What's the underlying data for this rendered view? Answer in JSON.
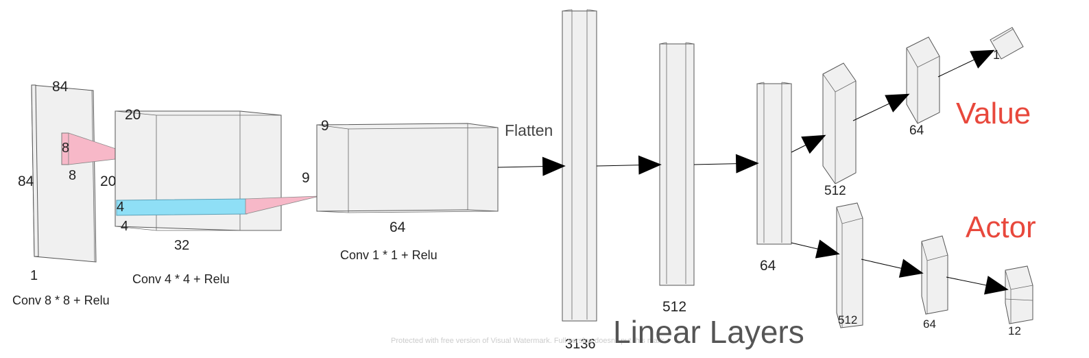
{
  "colors": {
    "accent_red": "#e8483c",
    "kernel_pink": "#f7b8c8",
    "slice_blue": "#8fdff6",
    "box_fill": "#f0f0f0",
    "box_stroke": "#555555"
  },
  "conv1": {
    "height": "84",
    "width": "84",
    "depth": "1",
    "kernel_h": "8",
    "kernel_w": "8",
    "caption": "Conv 8 * 8 + Relu"
  },
  "conv2": {
    "height": "20",
    "width": "20",
    "depth": "32",
    "kernel_h": "4",
    "kernel_w": "4",
    "caption": "Conv 4 * 4 + Relu"
  },
  "conv3": {
    "height": "9",
    "width": "9",
    "depth": "64",
    "caption": "Conv 1 * 1 + Relu"
  },
  "flatten_label": "Flatten",
  "linear": {
    "l1": "3136",
    "l2": "512",
    "l3": "64",
    "title": "Linear Layers"
  },
  "value_head": {
    "title": "Value",
    "l1": "512",
    "l2": "64",
    "l3": "1"
  },
  "actor_head": {
    "title": "Actor",
    "l1": "512",
    "l2": "64",
    "l3": "12"
  },
  "watermark": "Protected with free version of Visual Watermark. Full version doesn't put this mark."
}
